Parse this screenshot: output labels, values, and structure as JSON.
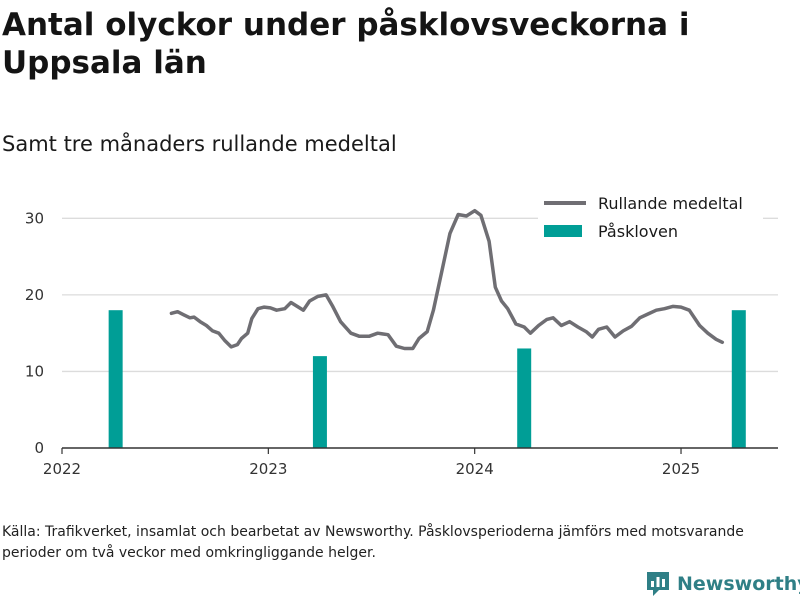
{
  "title": "Antal olyckor under påsklovsveckorna i Uppsala län",
  "subtitle": "Samt tre månaders rullande medeltal",
  "source": "Källa: Trafikverket, insamlat och bearbetat av Newsworthy. Påsklovsperioderna jämförs med motsvarande perioder om två veckor med omkringliggande helger.",
  "brand": {
    "name": "Newsworthy",
    "color": "#2f7f86",
    "icon": "newsworthy-logo-icon"
  },
  "colors": {
    "line": "#6f6e73",
    "bar": "#009e96",
    "grid": "#dcdcdc",
    "axis": "#333333"
  },
  "chart_data": {
    "type": "bar",
    "x_axis": {
      "type": "time",
      "range": [
        2022.0,
        2025.47
      ],
      "ticks": [
        2022,
        2023,
        2024,
        2025
      ],
      "tick_labels": [
        "2022",
        "2023",
        "2024",
        "2025"
      ]
    },
    "y_axis": {
      "range": [
        0,
        32
      ],
      "ticks": [
        0,
        10,
        20,
        30
      ],
      "tick_labels": [
        "0",
        "10",
        "20",
        "30"
      ]
    },
    "grid": true,
    "legend": {
      "position": "top-right",
      "entries": [
        {
          "label": "Rullande medeltal",
          "type": "line"
        },
        {
          "label": "Påskloven",
          "type": "bar"
        }
      ]
    },
    "series": [
      {
        "name": "Påskloven",
        "type": "bar",
        "points": [
          {
            "x": 2022.26,
            "y": 18
          },
          {
            "x": 2023.25,
            "y": 12
          },
          {
            "x": 2024.24,
            "y": 13
          },
          {
            "x": 2025.28,
            "y": 18
          }
        ]
      },
      {
        "name": "Rullande medeltal",
        "type": "line",
        "points": [
          [
            2022.53,
            17.6
          ],
          [
            2022.56,
            17.8
          ],
          [
            2022.59,
            17.4
          ],
          [
            2022.62,
            17.0
          ],
          [
            2022.64,
            17.1
          ],
          [
            2022.67,
            16.5
          ],
          [
            2022.7,
            16.0
          ],
          [
            2022.73,
            15.3
          ],
          [
            2022.76,
            15.0
          ],
          [
            2022.79,
            14.0
          ],
          [
            2022.82,
            13.2
          ],
          [
            2022.85,
            13.5
          ],
          [
            2022.87,
            14.3
          ],
          [
            2022.9,
            15.0
          ],
          [
            2022.92,
            16.9
          ],
          [
            2022.95,
            18.2
          ],
          [
            2022.98,
            18.4
          ],
          [
            2023.01,
            18.3
          ],
          [
            2023.04,
            18.0
          ],
          [
            2023.08,
            18.2
          ],
          [
            2023.11,
            19.0
          ],
          [
            2023.14,
            18.5
          ],
          [
            2023.17,
            18.0
          ],
          [
            2023.2,
            19.2
          ],
          [
            2023.24,
            19.8
          ],
          [
            2023.28,
            20.0
          ],
          [
            2023.31,
            18.6
          ],
          [
            2023.35,
            16.5
          ],
          [
            2023.4,
            15.0
          ],
          [
            2023.44,
            14.6
          ],
          [
            2023.49,
            14.6
          ],
          [
            2023.53,
            15.0
          ],
          [
            2023.58,
            14.8
          ],
          [
            2023.62,
            13.3
          ],
          [
            2023.66,
            13.0
          ],
          [
            2023.7,
            13.0
          ],
          [
            2023.73,
            14.3
          ],
          [
            2023.77,
            15.2
          ],
          [
            2023.8,
            18.0
          ],
          [
            2023.84,
            23.0
          ],
          [
            2023.88,
            28.0
          ],
          [
            2023.92,
            30.5
          ],
          [
            2023.96,
            30.3
          ],
          [
            2024.0,
            31.0
          ],
          [
            2024.03,
            30.4
          ],
          [
            2024.07,
            27.0
          ],
          [
            2024.1,
            21.0
          ],
          [
            2024.13,
            19.2
          ],
          [
            2024.16,
            18.2
          ],
          [
            2024.2,
            16.2
          ],
          [
            2024.24,
            15.8
          ],
          [
            2024.27,
            15.0
          ],
          [
            2024.31,
            16.0
          ],
          [
            2024.35,
            16.8
          ],
          [
            2024.38,
            17.0
          ],
          [
            2024.42,
            16.0
          ],
          [
            2024.46,
            16.5
          ],
          [
            2024.5,
            15.8
          ],
          [
            2024.54,
            15.2
          ],
          [
            2024.57,
            14.5
          ],
          [
            2024.6,
            15.5
          ],
          [
            2024.64,
            15.8
          ],
          [
            2024.68,
            14.5
          ],
          [
            2024.72,
            15.3
          ],
          [
            2024.76,
            15.9
          ],
          [
            2024.8,
            17.0
          ],
          [
            2024.84,
            17.5
          ],
          [
            2024.88,
            18.0
          ],
          [
            2024.92,
            18.2
          ],
          [
            2024.96,
            18.5
          ],
          [
            2025.0,
            18.4
          ],
          [
            2025.04,
            18.0
          ],
          [
            2025.09,
            16.0
          ],
          [
            2025.13,
            15.0
          ],
          [
            2025.17,
            14.2
          ],
          [
            2025.2,
            13.8
          ]
        ]
      }
    ]
  }
}
